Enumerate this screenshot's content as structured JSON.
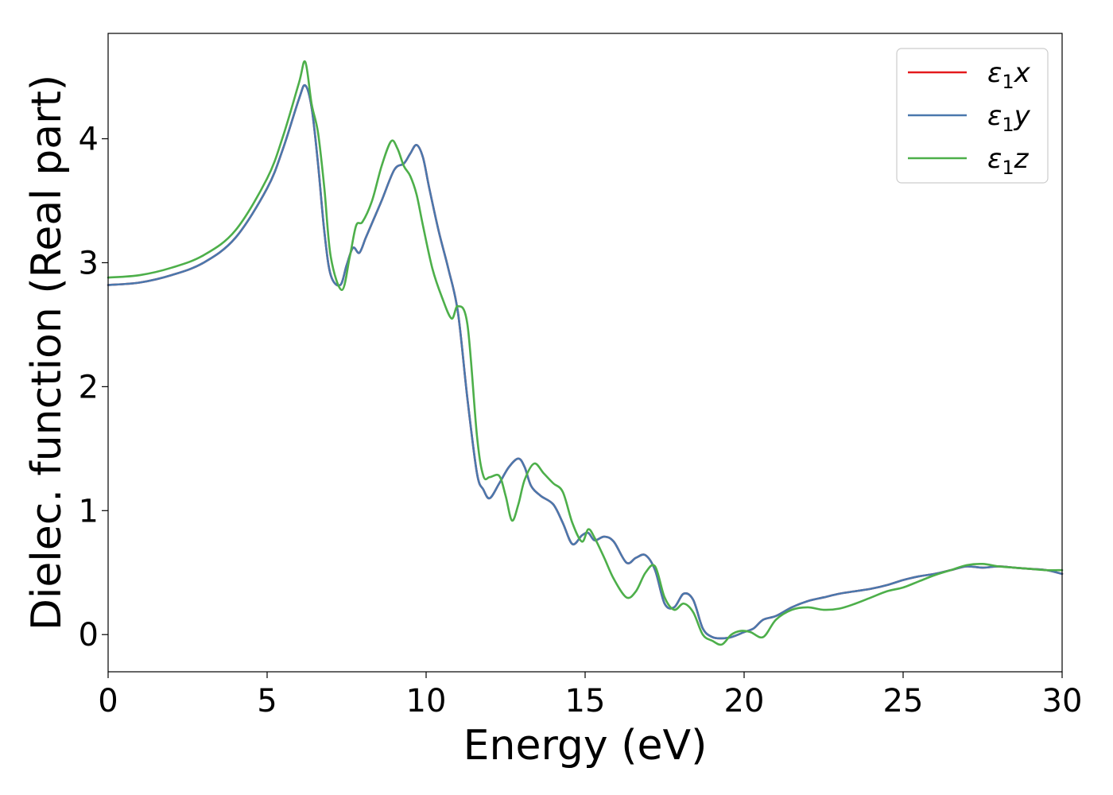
{
  "chart_data": {
    "type": "line",
    "title": "",
    "xlabel": "Energy (eV)",
    "ylabel": "Dielec. function (Real part)",
    "xlim": [
      0,
      30
    ],
    "ylim": [
      -0.3,
      4.85
    ],
    "xticks": [
      0,
      5,
      10,
      15,
      20,
      25,
      30
    ],
    "yticks": [
      0,
      1,
      2,
      3,
      4
    ],
    "grid": false,
    "legend_position": "top-right",
    "series": [
      {
        "legend_base": "ε",
        "legend_sub": "1",
        "legend_var": "x",
        "color": "#e41a1c",
        "x": [
          0,
          1,
          2,
          3,
          4,
          5,
          5.5,
          6.0,
          6.2,
          6.4,
          6.6,
          6.8,
          7.0,
          7.3,
          7.5,
          7.7,
          7.9,
          8.1,
          8.3,
          8.6,
          9.0,
          9.3,
          9.5,
          9.7,
          9.9,
          10.1,
          10.4,
          10.7,
          11.0,
          11.3,
          11.6,
          11.8,
          12.0,
          12.3,
          12.6,
          12.9,
          13.1,
          13.3,
          13.6,
          14.0,
          14.3,
          14.6,
          14.9,
          15.1,
          15.3,
          15.6,
          15.9,
          16.3,
          16.6,
          16.9,
          17.2,
          17.5,
          17.8,
          18.1,
          18.4,
          18.7,
          19.0,
          19.3,
          19.6,
          20.0,
          20.3,
          20.6,
          21.0,
          21.5,
          22.0,
          22.5,
          23.0,
          23.5,
          24.0,
          24.5,
          25.0,
          25.5,
          26.0,
          26.5,
          27.0,
          27.5,
          28.0,
          28.5,
          29.0,
          29.5,
          30.0
        ],
        "values": [
          2.82,
          2.84,
          2.9,
          3.0,
          3.2,
          3.6,
          3.92,
          4.32,
          4.43,
          4.25,
          3.8,
          3.25,
          2.9,
          2.82,
          2.98,
          3.12,
          3.08,
          3.2,
          3.32,
          3.5,
          3.75,
          3.8,
          3.88,
          3.95,
          3.85,
          3.6,
          3.25,
          2.95,
          2.6,
          1.9,
          1.3,
          1.17,
          1.1,
          1.22,
          1.35,
          1.42,
          1.35,
          1.2,
          1.12,
          1.05,
          0.9,
          0.73,
          0.8,
          0.82,
          0.76,
          0.79,
          0.75,
          0.58,
          0.62,
          0.64,
          0.52,
          0.25,
          0.22,
          0.33,
          0.28,
          0.05,
          -0.02,
          -0.03,
          -0.02,
          0.02,
          0.05,
          0.12,
          0.15,
          0.22,
          0.27,
          0.3,
          0.33,
          0.35,
          0.37,
          0.4,
          0.44,
          0.47,
          0.49,
          0.52,
          0.55,
          0.54,
          0.55,
          0.54,
          0.53,
          0.52,
          0.49
        ]
      },
      {
        "legend_base": "ε",
        "legend_sub": "1",
        "legend_var": "y",
        "color": "#4a78ad",
        "x": [
          0,
          1,
          2,
          3,
          4,
          5,
          5.5,
          6.0,
          6.2,
          6.4,
          6.6,
          6.8,
          7.0,
          7.3,
          7.5,
          7.7,
          7.9,
          8.1,
          8.3,
          8.6,
          9.0,
          9.3,
          9.5,
          9.7,
          9.9,
          10.1,
          10.4,
          10.7,
          11.0,
          11.3,
          11.6,
          11.8,
          12.0,
          12.3,
          12.6,
          12.9,
          13.1,
          13.3,
          13.6,
          14.0,
          14.3,
          14.6,
          14.9,
          15.1,
          15.3,
          15.6,
          15.9,
          16.3,
          16.6,
          16.9,
          17.2,
          17.5,
          17.8,
          18.1,
          18.4,
          18.7,
          19.0,
          19.3,
          19.6,
          20.0,
          20.3,
          20.6,
          21.0,
          21.5,
          22.0,
          22.5,
          23.0,
          23.5,
          24.0,
          24.5,
          25.0,
          25.5,
          26.0,
          26.5,
          27.0,
          27.5,
          28.0,
          28.5,
          29.0,
          29.5,
          30.0
        ],
        "values": [
          2.82,
          2.84,
          2.9,
          3.0,
          3.2,
          3.6,
          3.92,
          4.32,
          4.43,
          4.25,
          3.8,
          3.25,
          2.9,
          2.82,
          2.98,
          3.12,
          3.08,
          3.2,
          3.32,
          3.5,
          3.75,
          3.8,
          3.88,
          3.95,
          3.85,
          3.6,
          3.25,
          2.95,
          2.6,
          1.9,
          1.3,
          1.17,
          1.1,
          1.22,
          1.35,
          1.42,
          1.35,
          1.2,
          1.12,
          1.05,
          0.9,
          0.73,
          0.8,
          0.82,
          0.76,
          0.79,
          0.75,
          0.58,
          0.62,
          0.64,
          0.52,
          0.25,
          0.22,
          0.33,
          0.28,
          0.05,
          -0.02,
          -0.03,
          -0.02,
          0.02,
          0.05,
          0.12,
          0.15,
          0.22,
          0.27,
          0.3,
          0.33,
          0.35,
          0.37,
          0.4,
          0.44,
          0.47,
          0.49,
          0.52,
          0.55,
          0.54,
          0.55,
          0.54,
          0.53,
          0.52,
          0.49
        ]
      },
      {
        "legend_base": "ε",
        "legend_sub": "1",
        "legend_var": "z",
        "color": "#4daf4a",
        "x": [
          0,
          1,
          2,
          3,
          4,
          5,
          5.5,
          6.0,
          6.2,
          6.4,
          6.6,
          6.8,
          7.0,
          7.35,
          7.6,
          7.8,
          8.0,
          8.3,
          8.6,
          8.9,
          9.1,
          9.3,
          9.5,
          9.7,
          9.9,
          10.2,
          10.5,
          10.8,
          11.0,
          11.3,
          11.6,
          11.8,
          12.0,
          12.3,
          12.5,
          12.7,
          12.9,
          13.1,
          13.4,
          13.7,
          14.0,
          14.3,
          14.6,
          14.9,
          15.1,
          15.3,
          15.6,
          15.9,
          16.3,
          16.6,
          16.9,
          17.2,
          17.5,
          17.8,
          18.1,
          18.4,
          18.7,
          19.0,
          19.3,
          19.6,
          19.9,
          20.2,
          20.6,
          21.0,
          21.5,
          22.0,
          22.5,
          23.0,
          23.5,
          24.0,
          24.5,
          25.0,
          25.5,
          26.0,
          26.5,
          27.0,
          27.5,
          28.0,
          28.5,
          29.0,
          29.5,
          30.0
        ],
        "values": [
          2.88,
          2.9,
          2.96,
          3.06,
          3.26,
          3.68,
          4.02,
          4.45,
          4.62,
          4.28,
          4.05,
          3.6,
          3.05,
          2.78,
          3.05,
          3.3,
          3.33,
          3.5,
          3.78,
          3.98,
          3.92,
          3.78,
          3.7,
          3.55,
          3.3,
          2.95,
          2.72,
          2.55,
          2.65,
          2.5,
          1.6,
          1.28,
          1.27,
          1.28,
          1.12,
          0.92,
          1.05,
          1.25,
          1.38,
          1.3,
          1.22,
          1.15,
          0.9,
          0.75,
          0.85,
          0.78,
          0.62,
          0.45,
          0.3,
          0.35,
          0.5,
          0.55,
          0.3,
          0.2,
          0.25,
          0.18,
          0.0,
          -0.05,
          -0.08,
          0.0,
          0.03,
          0.02,
          -0.02,
          0.12,
          0.2,
          0.22,
          0.2,
          0.21,
          0.25,
          0.3,
          0.35,
          0.38,
          0.43,
          0.48,
          0.52,
          0.56,
          0.57,
          0.55,
          0.54,
          0.53,
          0.52,
          0.52
        ]
      }
    ]
  }
}
